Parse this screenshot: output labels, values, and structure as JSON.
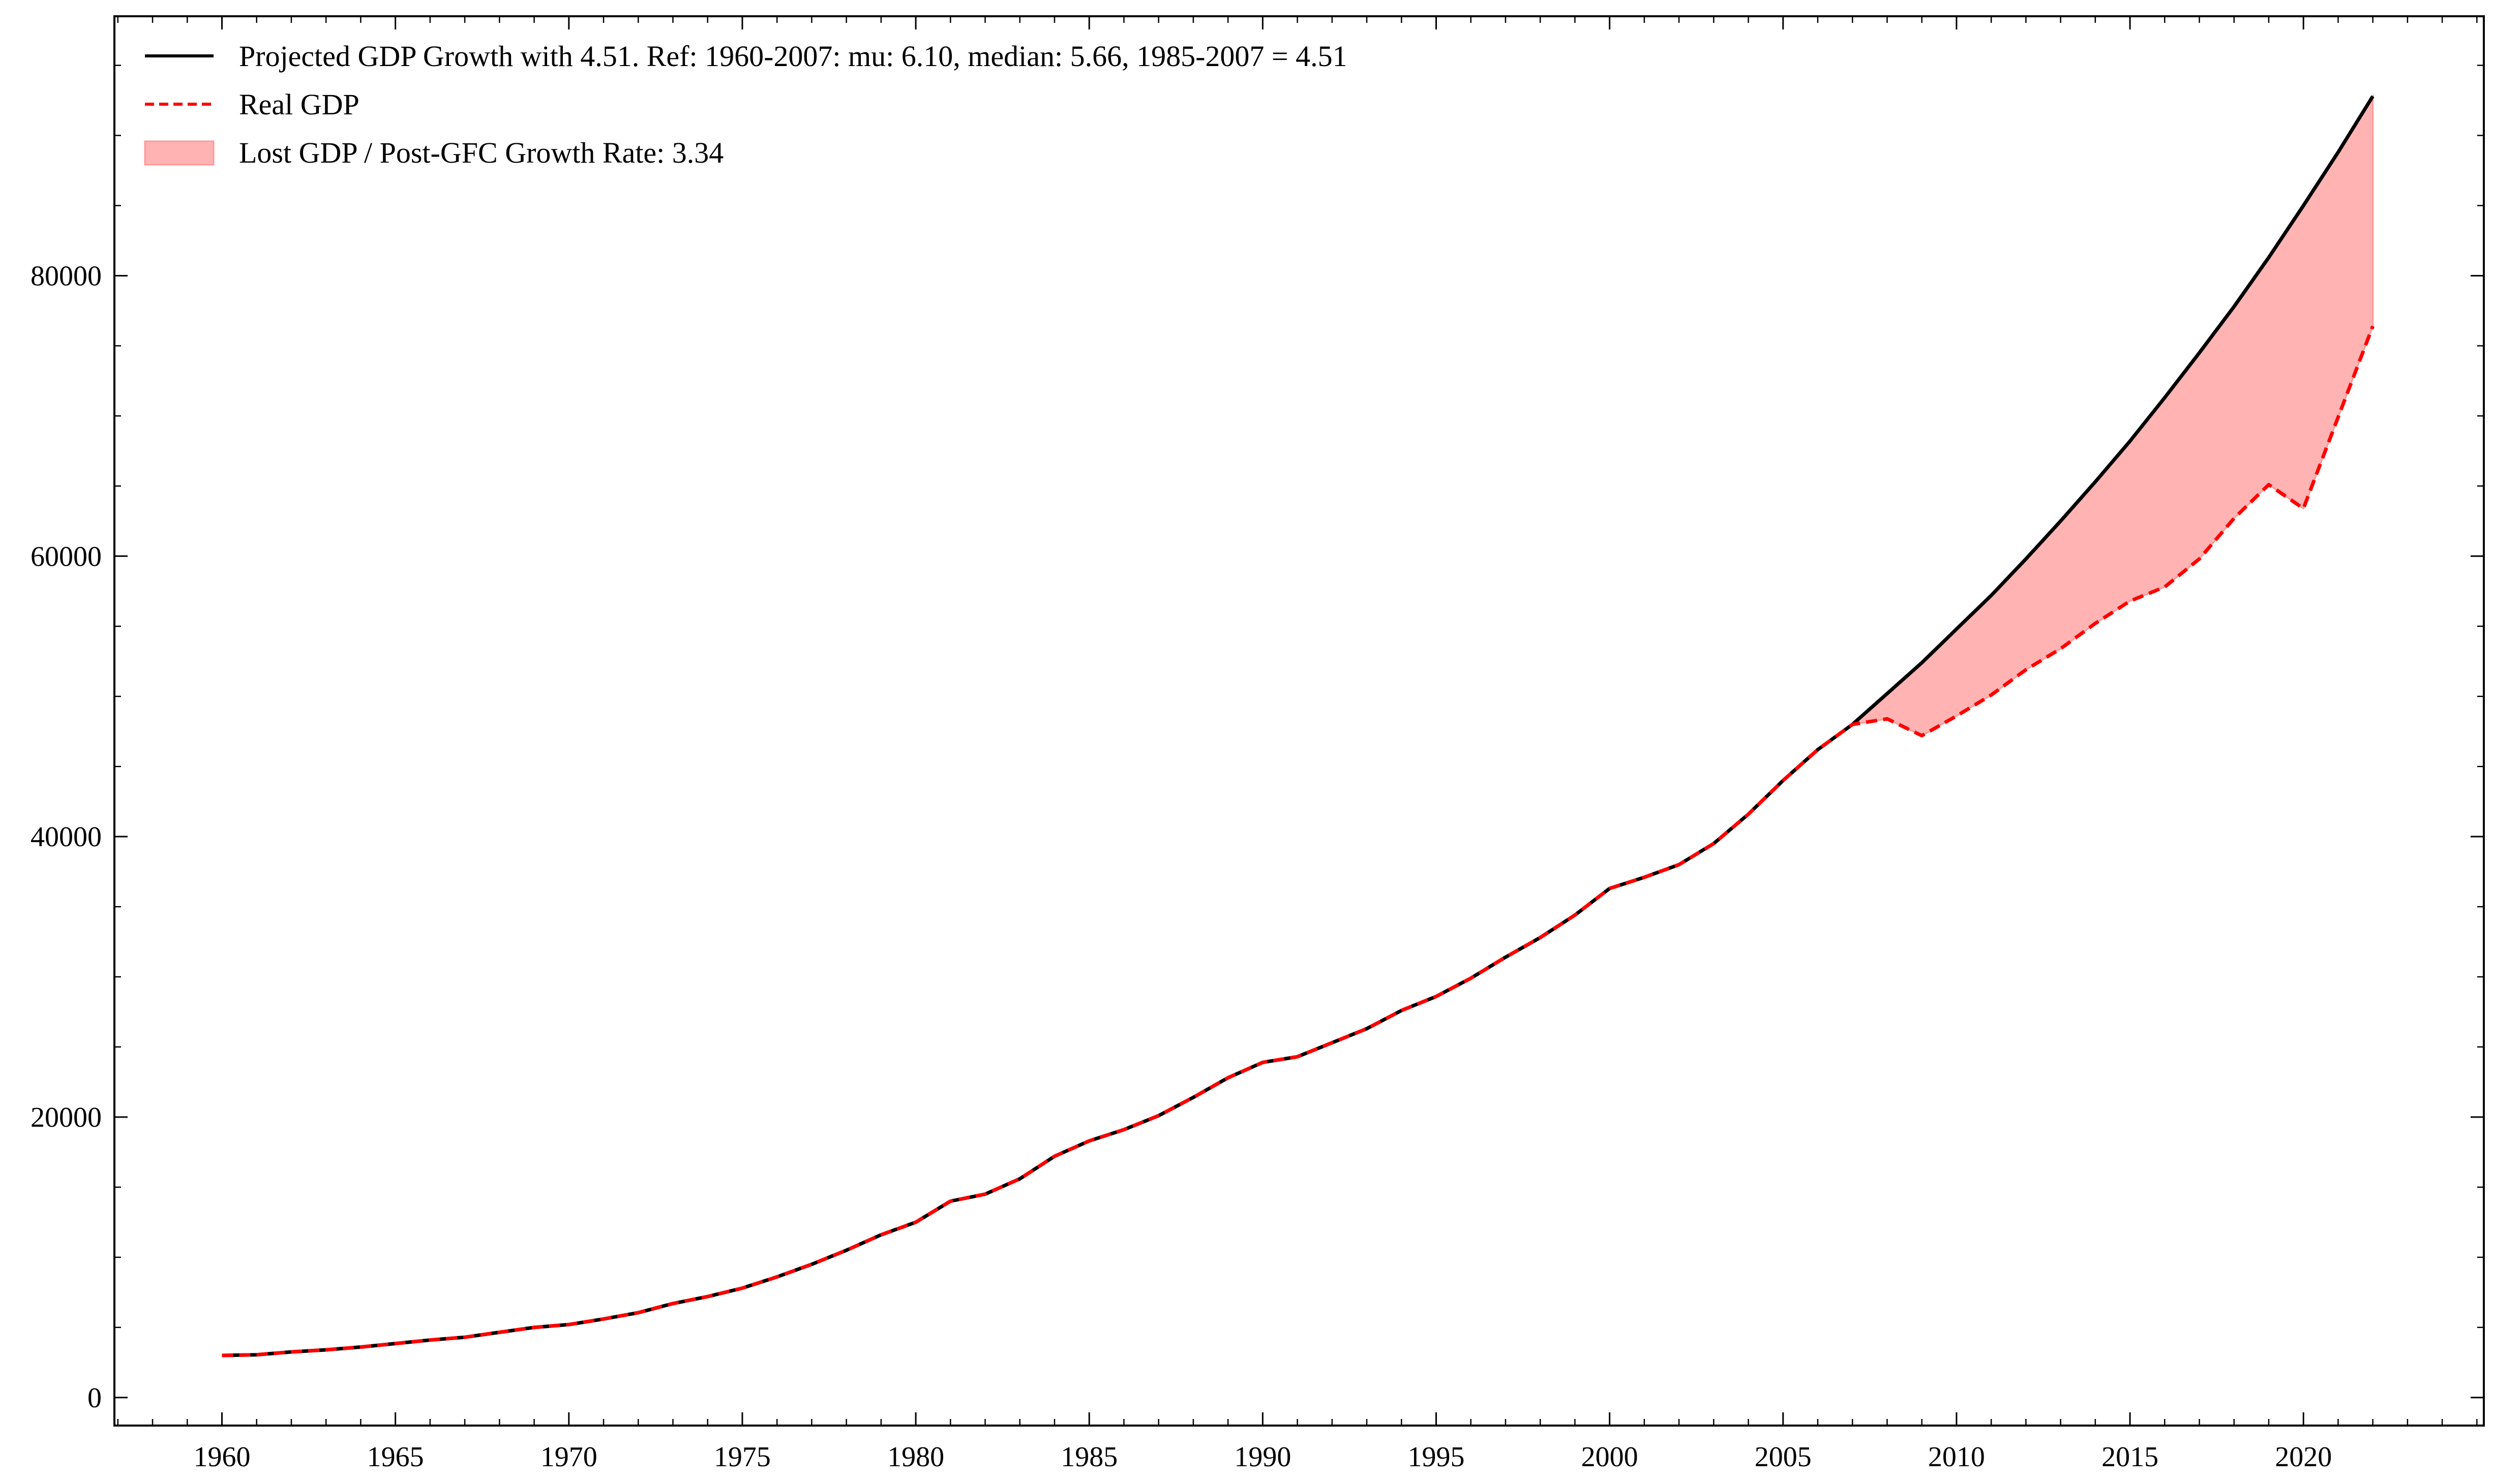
{
  "chart_data": {
    "type": "line",
    "title": "",
    "xlabel": "",
    "ylabel": "",
    "xlim": [
      1956.9,
      2025.2
    ],
    "ylim": [
      -2000,
      98500
    ],
    "x_ticks": [
      1960,
      1965,
      1970,
      1975,
      1980,
      1985,
      1990,
      1995,
      2000,
      2005,
      2010,
      2015,
      2020
    ],
    "y_ticks": [
      0,
      20000,
      40000,
      60000,
      80000
    ],
    "grid": false,
    "legend_position": "top-left",
    "x": [
      1960,
      1961,
      1962,
      1963,
      1964,
      1965,
      1966,
      1967,
      1968,
      1969,
      1970,
      1971,
      1972,
      1973,
      1974,
      1975,
      1976,
      1977,
      1978,
      1979,
      1980,
      1981,
      1982,
      1983,
      1984,
      1985,
      1986,
      1987,
      1988,
      1989,
      1990,
      1991,
      1992,
      1993,
      1994,
      1995,
      1996,
      1997,
      1998,
      1999,
      2000,
      2001,
      2002,
      2003,
      2004,
      2005,
      2006,
      2007,
      2008,
      2009,
      2010,
      2011,
      2012,
      2013,
      2014,
      2015,
      2016,
      2017,
      2018,
      2019,
      2020,
      2021,
      2022
    ],
    "series": [
      {
        "name": "Projected GDP Growth with 4.51. Ref: 1960-2007: mu: 6.10, median: 5.66, 1985-2007 = 4.51",
        "color": "#000000",
        "style": "solid",
        "values": [
          3000,
          3050,
          3250,
          3400,
          3600,
          3850,
          4100,
          4300,
          4650,
          5000,
          5200,
          5600,
          6050,
          6700,
          7200,
          7800,
          8600,
          9500,
          10500,
          11600,
          12500,
          14000,
          14500,
          15600,
          17200,
          18300,
          19100,
          20100,
          21400,
          22800,
          23900,
          24300,
          25300,
          26300,
          27600,
          28600,
          29900,
          31400,
          32800,
          34400,
          36300,
          37100,
          38000,
          39500,
          41600,
          44000,
          46200,
          48000,
          50200,
          52400,
          54800,
          57200,
          59800,
          62500,
          65300,
          68200,
          71300,
          74500,
          77800,
          81300,
          85000,
          88800,
          92800
        ]
      },
      {
        "name": "Real GDP",
        "color": "#ff0000",
        "style": "dashed",
        "values": [
          3000,
          3050,
          3250,
          3400,
          3600,
          3850,
          4100,
          4300,
          4650,
          5000,
          5200,
          5600,
          6050,
          6700,
          7200,
          7800,
          8600,
          9500,
          10500,
          11600,
          12500,
          14000,
          14500,
          15600,
          17200,
          18300,
          19100,
          20100,
          21400,
          22800,
          23900,
          24300,
          25300,
          26300,
          27600,
          28600,
          29900,
          31400,
          32800,
          34400,
          36300,
          37100,
          38000,
          39500,
          41600,
          44000,
          46200,
          48000,
          48400,
          47200,
          48600,
          50100,
          51900,
          53400,
          55200,
          56800,
          57800,
          59800,
          62700,
          65100,
          63400,
          69900,
          76400
        ]
      }
    ],
    "fill": {
      "name": "Lost GDP / Post-GFC Growth Rate: 3.34",
      "color": "#ff9999",
      "between": [
        "Projected GDP Growth with 4.51. Ref: 1960-2007: mu: 6.10, median: 5.66, 1985-2007 = 4.51",
        "Real GDP"
      ],
      "from_x": 2007
    }
  }
}
